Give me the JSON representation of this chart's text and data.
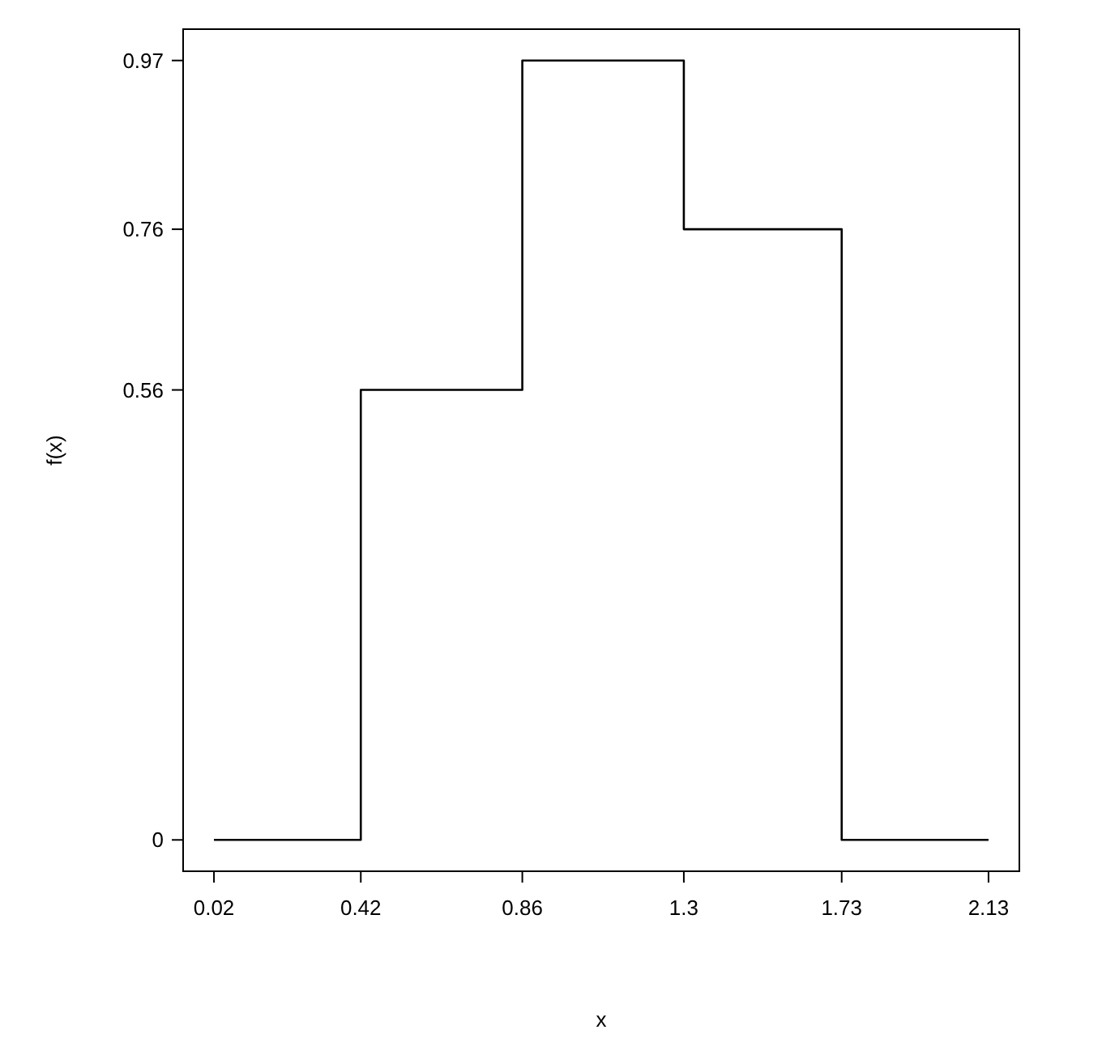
{
  "chart_data": {
    "type": "step",
    "xlabel": "x",
    "ylabel": "f(x)",
    "x": [
      0.02,
      0.42,
      0.86,
      1.3,
      1.73,
      2.13
    ],
    "series": [
      {
        "color": "#000000",
        "values": [
          0,
          0.56,
          0.97,
          0.76,
          0,
          0
        ]
      }
    ],
    "xlim": [
      -0.064,
      2.214
    ],
    "ylim": [
      -0.039,
      1.009
    ],
    "xticks": [
      0.02,
      0.42,
      0.86,
      1.3,
      1.73,
      2.13
    ],
    "yticks": [
      0,
      0.56,
      0.76,
      0.97
    ],
    "grid": false,
    "marker": "none",
    "line_style": "solid"
  }
}
